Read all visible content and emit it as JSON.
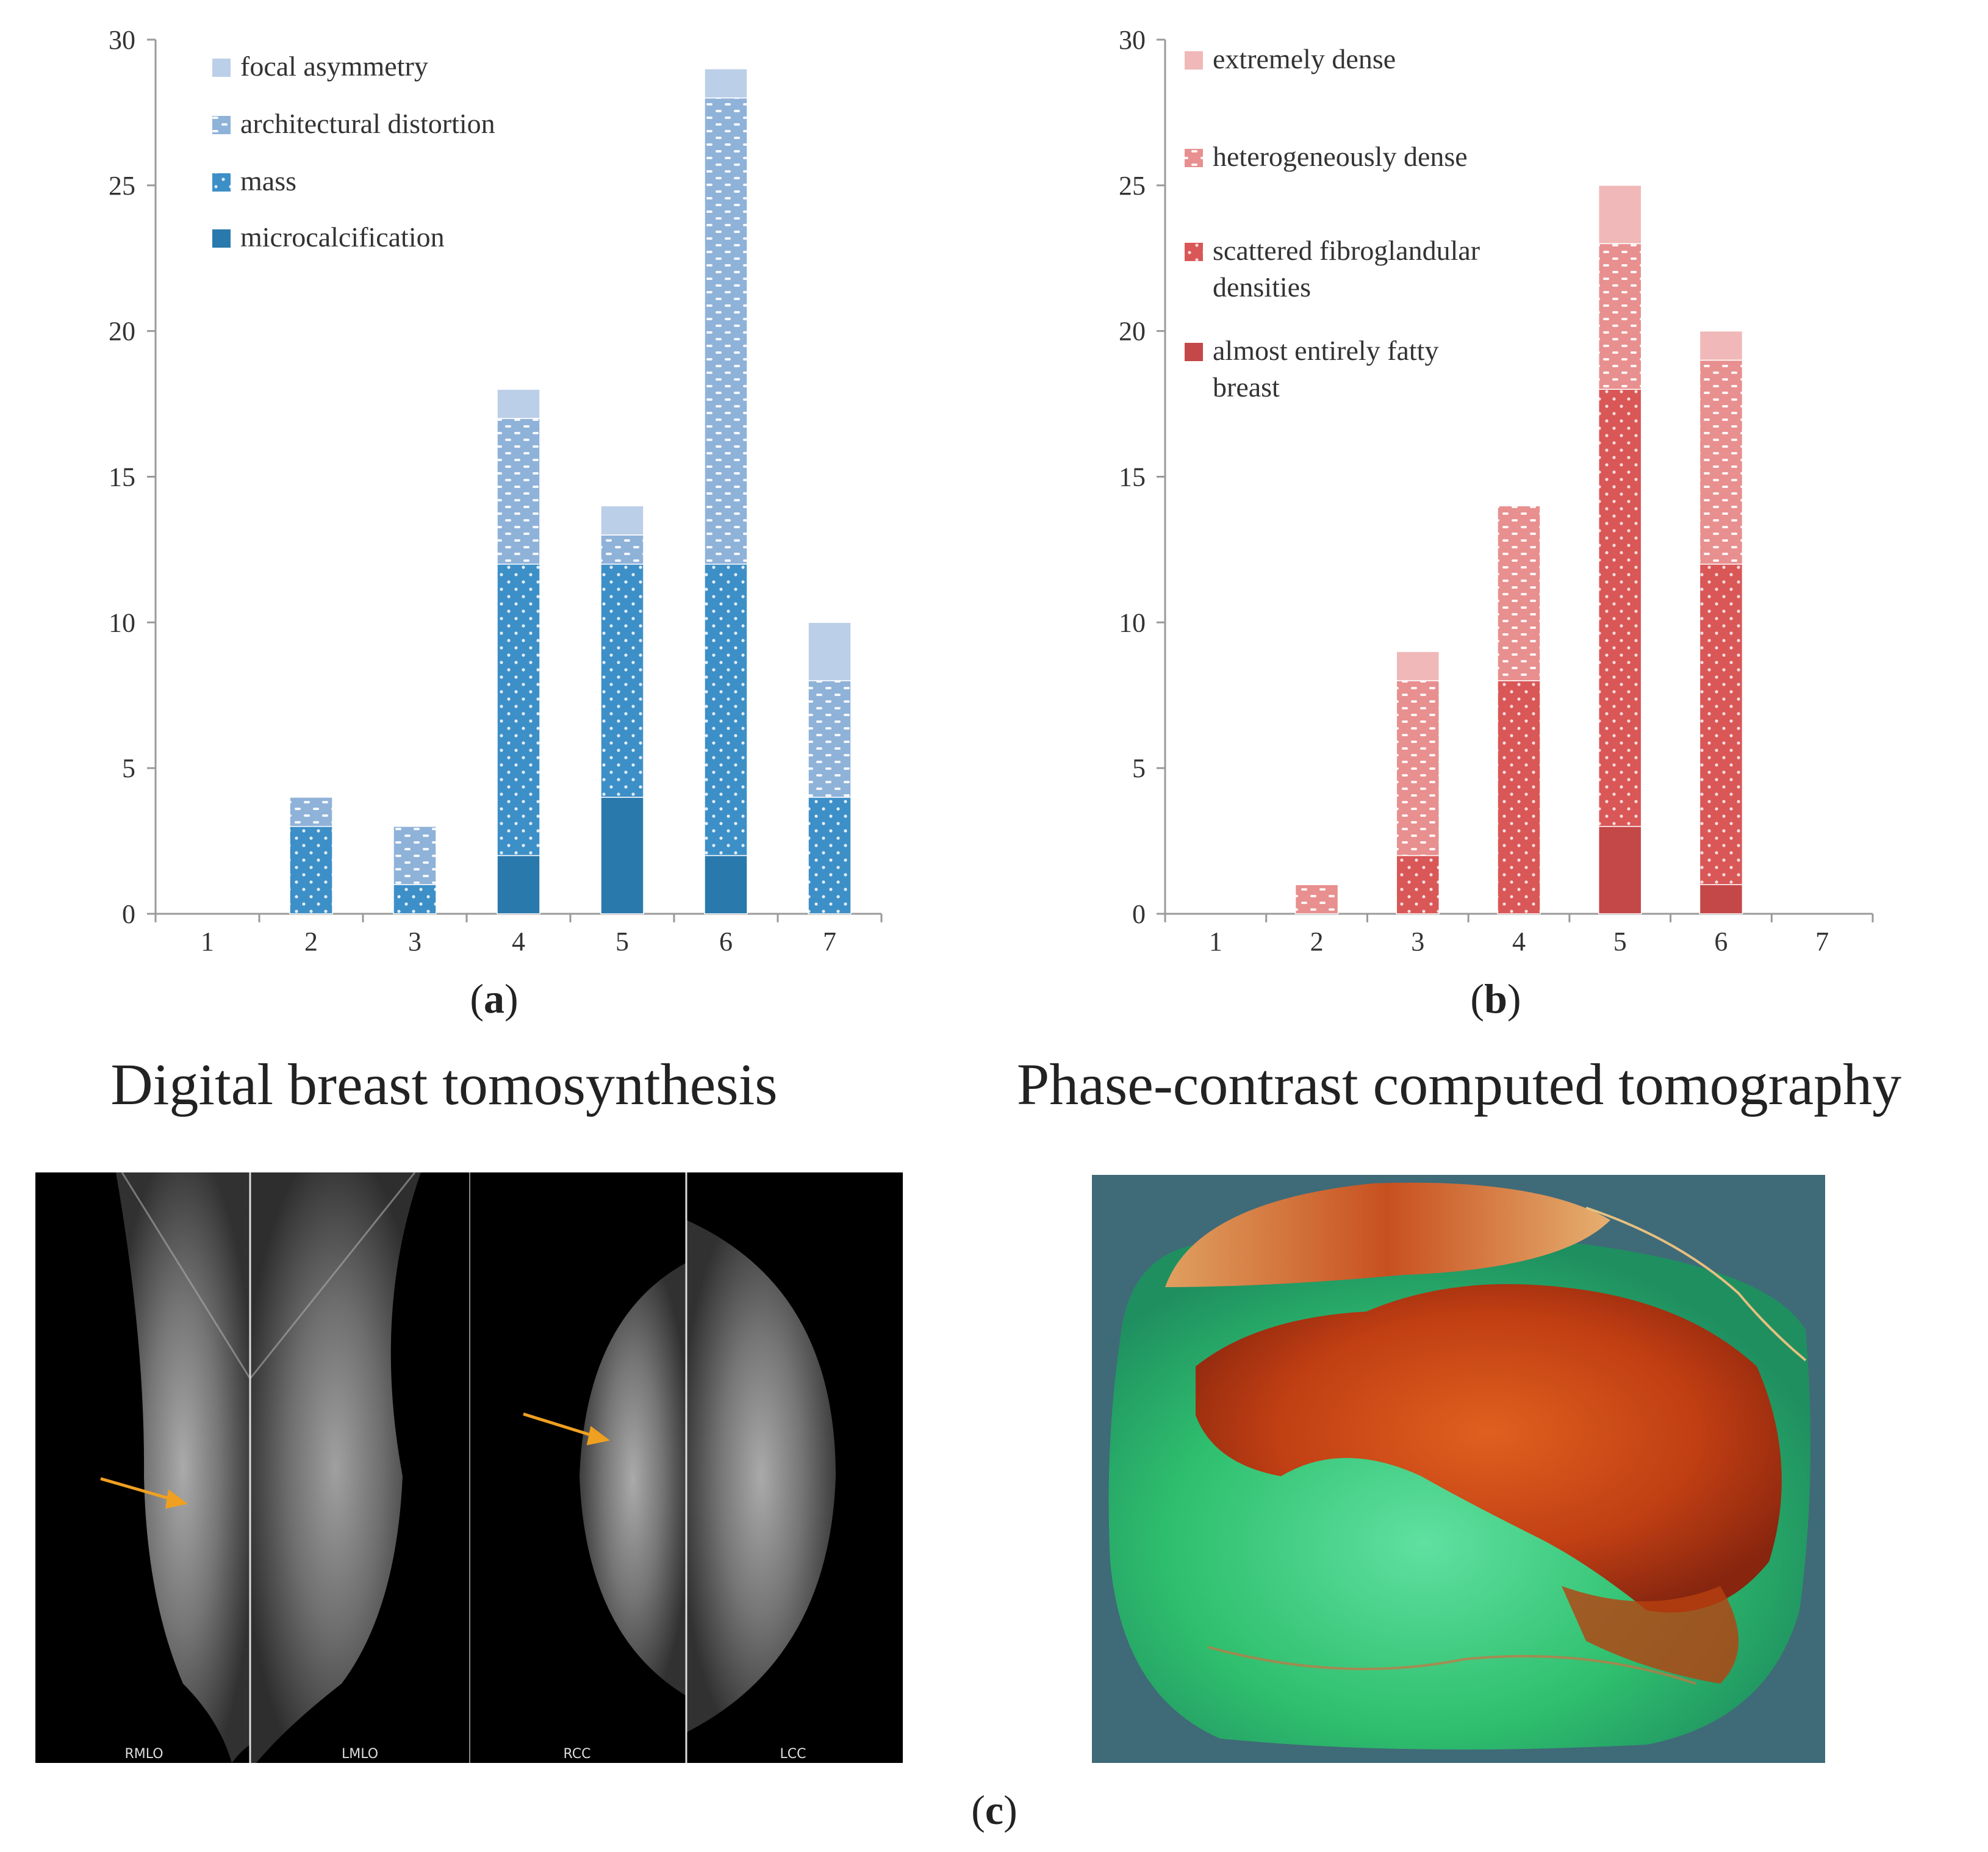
{
  "chart_data": [
    {
      "id": "a",
      "type": "bar",
      "stacked": true,
      "panel_label": "a",
      "categories": [
        "1",
        "2",
        "3",
        "4",
        "5",
        "6",
        "7"
      ],
      "ylim": [
        0,
        30
      ],
      "yticks": [
        0,
        5,
        10,
        15,
        20,
        25,
        30
      ],
      "legend_position": "top-left",
      "series": [
        {
          "name": "microcalcification",
          "values": [
            0,
            0,
            0,
            2,
            4,
            2,
            0
          ],
          "color": "#2a79ac",
          "pattern": "solid"
        },
        {
          "name": "mass",
          "values": [
            0,
            3,
            1,
            10,
            8,
            10,
            4
          ],
          "color": "#3d8fc7",
          "pattern": "dots"
        },
        {
          "name": "architectural distortion",
          "values": [
            0,
            1,
            2,
            5,
            1,
            16,
            4
          ],
          "color": "#8fb2d9",
          "pattern": "dashes"
        },
        {
          "name": "focal asymmetry",
          "values": [
            0,
            0,
            0,
            1,
            1,
            1,
            2
          ],
          "color": "#bccfe8",
          "pattern": "solid"
        }
      ]
    },
    {
      "id": "b",
      "type": "bar",
      "stacked": true,
      "panel_label": "b",
      "categories": [
        "1",
        "2",
        "3",
        "4",
        "5",
        "6",
        "7"
      ],
      "ylim": [
        0,
        30
      ],
      "yticks": [
        0,
        5,
        10,
        15,
        20,
        25,
        30
      ],
      "legend_position": "top-left",
      "series": [
        {
          "name": "almost entirely fatty breast",
          "values": [
            0,
            0,
            0,
            0,
            3,
            1,
            0
          ],
          "color": "#c44848",
          "pattern": "solid"
        },
        {
          "name": "scattered fibroglandular densities",
          "values": [
            0,
            0,
            2,
            8,
            15,
            11,
            0
          ],
          "color": "#d95757",
          "pattern": "dots"
        },
        {
          "name": "heterogeneously dense",
          "values": [
            0,
            1,
            6,
            6,
            5,
            7,
            0
          ],
          "color": "#e88f8f",
          "pattern": "dashes"
        },
        {
          "name": "extremely dense",
          "values": [
            0,
            0,
            1,
            0,
            2,
            1,
            0
          ],
          "color": "#f0b8b8",
          "pattern": "solid"
        }
      ]
    }
  ],
  "legend_a": [
    "focal asymmetry",
    "architectural distortion",
    "mass",
    "microcalcification"
  ],
  "legend_b": [
    [
      "extremely dense"
    ],
    [
      "heterogeneously dense"
    ],
    [
      "scattered fibroglandular",
      "densities"
    ],
    [
      "almost entirely fatty",
      "breast"
    ]
  ],
  "captions": {
    "a": "a",
    "b": "b",
    "c": "c",
    "title_left": "Digital breast tomosynthesis",
    "title_right": "Phase-contrast computed tomography"
  },
  "dbt_views": [
    "RMLO",
    "LMLO",
    "RCC",
    "LCC"
  ],
  "colors": {
    "axis": "#9a9a9a",
    "text": "#333333",
    "arrow": "#f0a020",
    "ct_background": "#3f6a78",
    "ct_green": "#30c070",
    "ct_red": "#c83a10"
  }
}
